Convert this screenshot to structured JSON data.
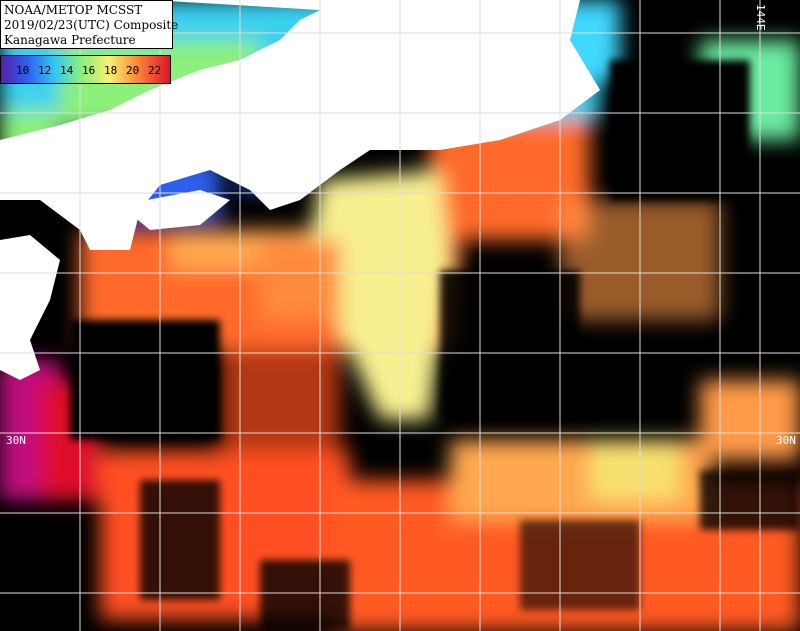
{
  "header": {
    "lines": [
      "NOAA/METOP MCSST",
      "2019/02/23(UTC) Composite",
      "Kanagawa Prefecture"
    ]
  },
  "legend": {
    "labels": [
      "10",
      "12",
      "14",
      "16",
      "18",
      "20",
      "22"
    ]
  },
  "grid_labels": {
    "latitude_left": "30N",
    "latitude_right": "30N",
    "longitude_top": "144E"
  }
}
